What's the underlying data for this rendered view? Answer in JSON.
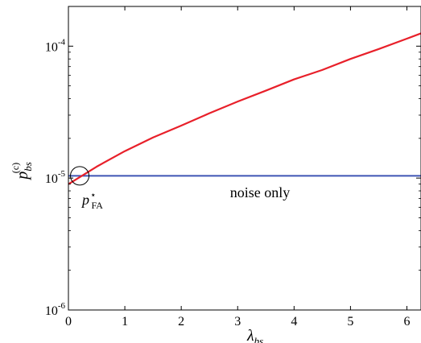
{
  "chart_data": {
    "type": "line",
    "xlabel": "λ",
    "xlabel_sub": "bs",
    "ylabel": "p",
    "ylabel_sub": "bs",
    "ylabel_sup": "(c)",
    "xlim": [
      0,
      6.25
    ],
    "ylim": [
      1e-06,
      0.0002
    ],
    "yscale": "log",
    "grid": false,
    "x_ticks": [
      0,
      1,
      2,
      3,
      4,
      5,
      6
    ],
    "y_ticks": [
      {
        "value": 1e-06,
        "base": "10",
        "exp": "-6"
      },
      {
        "value": 1e-05,
        "base": "10",
        "exp": "-5"
      },
      {
        "value": 0.0001,
        "base": "10",
        "exp": "-4"
      }
    ],
    "series": [
      {
        "color": "#e8202a",
        "x": [
          0,
          0.5,
          1,
          1.5,
          2,
          2.5,
          3,
          3.5,
          4,
          4.5,
          5,
          5.5,
          6,
          6.25
        ],
        "y": [
          9e-06,
          1.22e-05,
          1.6e-05,
          2.03e-05,
          2.5e-05,
          3.1e-05,
          3.8e-05,
          4.6e-05,
          5.6e-05,
          6.6e-05,
          8e-05,
          9.5e-05,
          0.000114,
          0.000125
        ]
      },
      {
        "color": "#3e55b4",
        "x": [
          0,
          6.25
        ],
        "y": [
          1.04e-05,
          1.04e-05
        ]
      }
    ],
    "annotations": [
      {
        "text": "noise only"
      },
      {
        "text": "p",
        "sup": "⋆",
        "sub": "FA",
        "marker": "circle",
        "at_x": 0.2,
        "at_y": 1.04e-05
      }
    ]
  }
}
